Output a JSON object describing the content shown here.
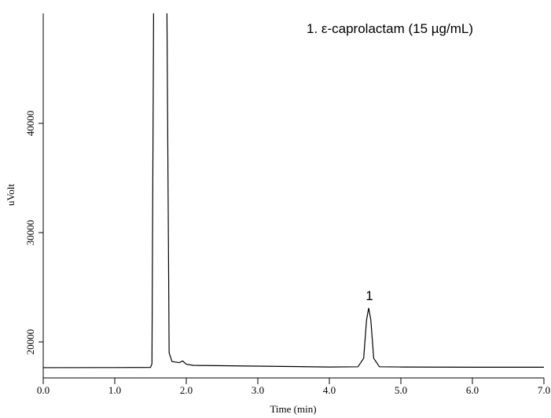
{
  "chart_data": {
    "type": "line",
    "x_label": "Time (min)",
    "y_label": "uVolt",
    "legend_text": "1. ε-caprolactam (15 µg/mL)",
    "peak_label": "1",
    "xlim": [
      0,
      7
    ],
    "ylim": [
      16700,
      50070
    ],
    "xticks": [
      {
        "value": 0,
        "label": "0.0"
      },
      {
        "value": 1,
        "label": "1.0"
      },
      {
        "value": 2,
        "label": "2.0"
      },
      {
        "value": 3,
        "label": "3.0"
      },
      {
        "value": 4,
        "label": "4.0"
      },
      {
        "value": 5,
        "label": "5.0"
      },
      {
        "value": 6,
        "label": "6.0"
      },
      {
        "value": 7,
        "label": "7.0"
      }
    ],
    "yticks": [
      20000,
      30000,
      40000
    ],
    "series": [
      {
        "color": "#000000",
        "x": [
          0,
          1.0,
          1.5,
          1.52,
          1.55,
          1.72,
          1.76,
          1.8,
          1.9,
          1.95,
          2.0,
          2.1,
          3.0,
          4.0,
          4.4,
          4.48,
          4.52,
          4.55,
          4.58,
          4.62,
          4.7,
          5.0,
          6.0,
          7.0
        ],
        "values": [
          17640,
          17650,
          17660,
          18000,
          60000,
          60000,
          19000,
          18200,
          18100,
          18250,
          17950,
          17850,
          17780,
          17700,
          17720,
          18500,
          22000,
          23100,
          22000,
          18500,
          17720,
          17700,
          17680,
          17680
        ]
      }
    ]
  }
}
